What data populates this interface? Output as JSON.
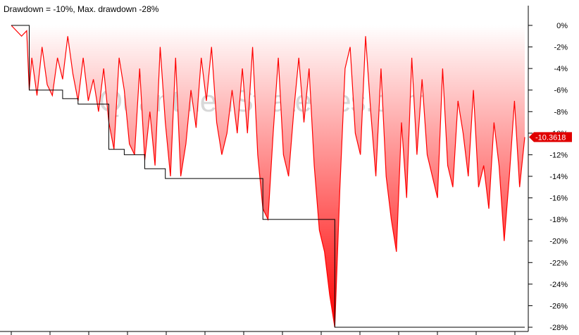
{
  "chart_data": {
    "type": "area",
    "title": "Drawdown = -10%, Max. drawdown -28%",
    "watermark": "QuantifiedStrategies.com",
    "xlabel": "",
    "ylabel": "",
    "ylim": [
      -28.5,
      0.2
    ],
    "yticks": [
      0,
      -2,
      -4,
      -6,
      -8,
      -10,
      -12,
      -14,
      -16,
      -18,
      -20,
      -22,
      -24,
      -26,
      -28
    ],
    "ytick_labels": [
      "0%",
      "-2%",
      "-4%",
      "-6%",
      "-8%",
      "-10%",
      "-12%",
      "-14%",
      "-16%",
      "-18%",
      "-20%",
      "-22%",
      "-24%",
      "-26%",
      "-28%"
    ],
    "grid": false,
    "last_value_label": "-10.3618",
    "colors": {
      "series": "#ff0000",
      "max_drawdown": "#000000",
      "fill_top": "#ffffff",
      "fill_bottom": "#ff0000"
    },
    "series": [
      {
        "name": "Drawdown",
        "x": [
          0,
          2,
          3,
          3.5,
          4,
          5,
          6,
          7,
          8,
          9,
          10,
          11,
          12,
          13,
          14,
          15,
          16,
          17,
          18,
          19,
          20,
          21,
          22,
          23,
          24,
          25,
          26,
          27,
          28,
          29,
          30,
          31,
          32,
          33,
          34,
          35,
          36,
          37,
          38,
          39,
          40,
          41,
          42,
          43,
          44,
          45,
          46,
          47,
          48,
          49,
          50,
          51,
          52,
          53,
          54,
          55,
          56,
          57,
          58,
          59,
          60,
          61,
          62,
          63,
          64,
          65,
          66,
          67,
          68,
          69,
          70,
          71,
          72,
          73,
          74,
          75,
          76,
          77,
          78,
          79,
          80,
          81,
          82,
          83,
          84,
          85,
          86,
          87,
          88,
          89,
          90,
          91,
          92,
          93,
          94,
          95,
          96,
          97,
          98,
          99,
          100
        ],
        "values": [
          0,
          -1,
          -0.5,
          -6,
          -3,
          -6.5,
          -2,
          -5.5,
          -6.5,
          -3,
          -5,
          -1,
          -4.5,
          -7,
          -3,
          -7,
          -5,
          -8,
          -4,
          -9,
          -11.5,
          -3,
          -6,
          -11,
          -12,
          -4,
          -12.5,
          -8,
          -13,
          -2,
          -9,
          -14,
          -3,
          -14,
          -11,
          -6,
          -9.5,
          -3,
          -7,
          -2,
          -9,
          -12,
          -10,
          -6,
          -10,
          -4,
          -10,
          -2,
          -12,
          -17,
          -18,
          -10,
          -3,
          -12,
          -14,
          -8,
          -3,
          -9,
          -4,
          -13,
          -19,
          -21,
          -25,
          -28,
          -15,
          -4,
          -2,
          -10,
          -12,
          -1,
          -8,
          -14,
          -4,
          -14,
          -18,
          -21,
          -9,
          -16,
          -3,
          -12,
          -5,
          -12,
          -14,
          -16,
          -4,
          -13,
          -15,
          -7,
          -10,
          -14,
          -6,
          -15,
          -13,
          -17,
          -9,
          -13,
          -20,
          -14,
          -7,
          -15,
          -10.3618
        ]
      },
      {
        "name": "Max. drawdown",
        "x": [
          0,
          3.5,
          10,
          13,
          19,
          22,
          26,
          30,
          45,
          49,
          63,
          100
        ],
        "values": [
          0,
          -6,
          -6.8,
          -7.3,
          -11.5,
          -12,
          -13.3,
          -14.2,
          -14.2,
          -18,
          -28,
          -28
        ]
      }
    ]
  }
}
